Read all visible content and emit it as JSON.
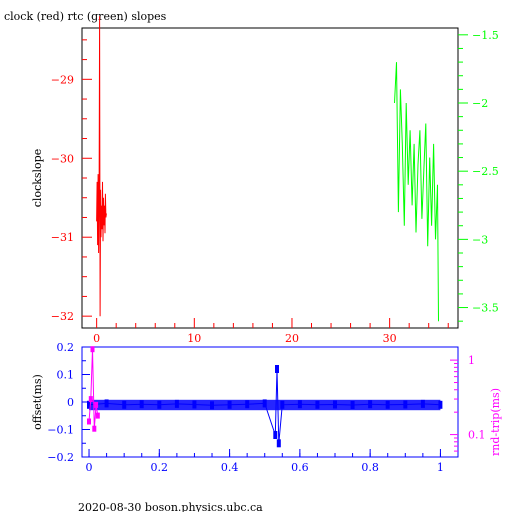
{
  "title": "clock (red) rtc (green) slopes",
  "footer": "2020-08-30 boson.physics.ubc.ca",
  "colors": {
    "clock": "#ff0000",
    "rtc": "#00ff00",
    "offset": "#0000ff",
    "roundtrip": "#ff00ff",
    "frame": "#000000"
  },
  "chart_data": [
    {
      "type": "line",
      "name": "top-panel",
      "title": "clock (red) rtc (green) slopes",
      "ylabel": "clockslope",
      "xlim": [
        -1.5,
        37
      ],
      "ylim": [
        -32.15,
        -28.35
      ],
      "y2lim": [
        -3.65,
        -1.45
      ],
      "grid": false,
      "x_ticks": [
        0,
        10,
        20,
        30
      ],
      "y_ticks": [
        -29,
        -30,
        -31,
        -32
      ],
      "y2_ticks": [
        -1.5,
        -2,
        -2.5,
        -3,
        -3.5
      ],
      "series": [
        {
          "name": "clock",
          "axis": "left",
          "color": "#ff0000",
          "x": [
            0.0,
            0.05,
            0.1,
            0.15,
            0.2,
            0.25,
            0.3,
            0.35,
            0.4,
            0.45,
            0.5,
            0.55,
            0.6,
            0.65,
            0.7,
            0.75,
            0.8,
            0.85,
            0.9,
            0.95,
            1.0
          ],
          "y": [
            -30.8,
            -30.3,
            -31.1,
            -30.2,
            -31.2,
            -30.5,
            -28.2,
            -32.0,
            -30.4,
            -31.0,
            -30.6,
            -30.9,
            -30.3,
            -31.05,
            -30.5,
            -30.85,
            -30.6,
            -30.95,
            -30.45,
            -30.75,
            -30.7
          ]
        },
        {
          "name": "rtc",
          "axis": "right",
          "color": "#00ff00",
          "x": [
            30.5,
            30.7,
            30.9,
            31.1,
            31.3,
            31.5,
            31.7,
            31.9,
            32.1,
            32.3,
            32.5,
            32.7,
            32.9,
            33.1,
            33.3,
            33.5,
            33.7,
            33.9,
            34.1,
            34.3,
            34.5,
            34.7,
            34.9,
            35.0
          ],
          "y": [
            -2.0,
            -1.7,
            -2.8,
            -1.9,
            -2.3,
            -2.9,
            -2.0,
            -2.6,
            -2.2,
            -2.75,
            -2.3,
            -2.95,
            -2.45,
            -2.2,
            -2.85,
            -2.5,
            -2.15,
            -3.05,
            -2.4,
            -2.9,
            -2.3,
            -3.0,
            -2.6,
            -3.6
          ]
        }
      ]
    },
    {
      "type": "scatter",
      "name": "bottom-panel",
      "ylabel": "offset(ms)",
      "y2label": "rnd-trip(ms)",
      "xlim": [
        -0.02,
        1.05
      ],
      "ylim": [
        -0.2,
        0.2
      ],
      "y2lim": [
        0.05,
        1.5
      ],
      "y2_scale": "log",
      "grid": false,
      "x_ticks": [
        0,
        0.2,
        0.4,
        0.6,
        0.8,
        1
      ],
      "x_tick_labels": [
        "0",
        "0.2",
        "0.4",
        "0.6",
        "0.8",
        "1"
      ],
      "y_ticks": [
        0.2,
        0.1,
        0,
        -0.1,
        -0.2
      ],
      "y2_ticks": [
        1,
        0.1
      ],
      "series": [
        {
          "name": "offset",
          "axis": "left",
          "color": "#0000ff",
          "x": [
            0.0,
            0.05,
            0.1,
            0.15,
            0.2,
            0.25,
            0.3,
            0.35,
            0.4,
            0.45,
            0.5,
            0.53,
            0.535,
            0.54,
            0.55,
            0.6,
            0.65,
            0.7,
            0.75,
            0.8,
            0.85,
            0.9,
            0.95,
            1.0
          ],
          "y": [
            -0.01,
            -0.005,
            -0.01,
            -0.008,
            -0.01,
            -0.007,
            -0.009,
            -0.012,
            -0.01,
            -0.008,
            -0.005,
            -0.12,
            0.12,
            -0.15,
            -0.01,
            -0.008,
            -0.01,
            -0.009,
            -0.011,
            -0.008,
            -0.01,
            -0.009,
            -0.007,
            -0.01
          ]
        },
        {
          "name": "round-trip",
          "axis": "right",
          "color": "#ff00ff",
          "x": [
            0.0,
            0.005,
            0.01,
            0.015,
            0.02,
            0.025
          ],
          "y": [
            0.15,
            0.3,
            1.4,
            0.12,
            0.25,
            0.18
          ]
        }
      ]
    }
  ]
}
